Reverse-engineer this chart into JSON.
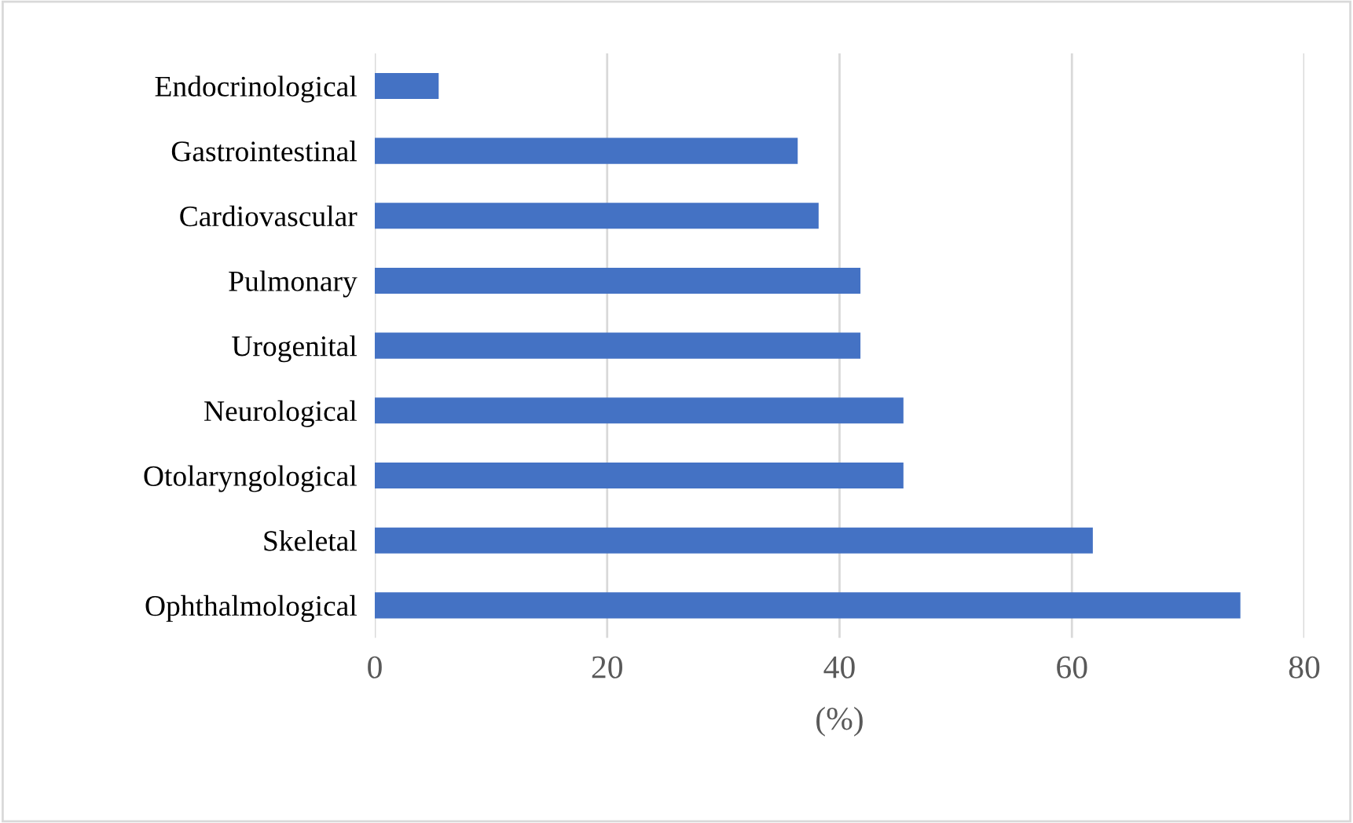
{
  "chart_data": {
    "type": "bar",
    "orientation": "horizontal",
    "xlabel": "(%)",
    "categories": [
      "Endocrinological",
      "Gastrointestinal",
      "Cardiovascular",
      "Pulmonary",
      "Urogenital",
      "Neurological",
      "Otolaryngological",
      "Skeletal",
      "Ophthalmological"
    ],
    "values": [
      5.5,
      36.4,
      38.2,
      41.8,
      41.8,
      45.5,
      45.5,
      61.8,
      74.5
    ],
    "color": "#4472c4",
    "xlim": [
      0,
      80
    ],
    "xticks": [
      0,
      20,
      40,
      60,
      80
    ],
    "grid": "x",
    "legend": false
  }
}
